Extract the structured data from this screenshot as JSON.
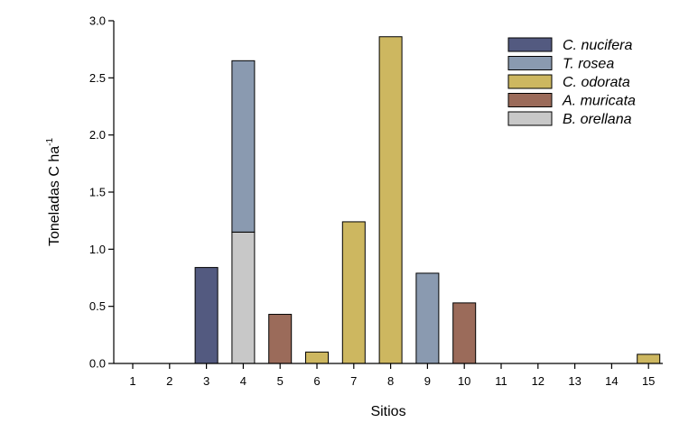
{
  "chart_data": {
    "type": "bar",
    "stacked": true,
    "title": "",
    "xlabel": "Sitios",
    "ylabel_main": "Toneladas C ha",
    "ylabel_sup": "-1",
    "ylim": [
      0,
      3.0
    ],
    "yticks": [
      "0.0",
      "0.5",
      "1.0",
      "1.5",
      "2.0",
      "2.5",
      "3.0"
    ],
    "categories": [
      "1",
      "2",
      "3",
      "4",
      "5",
      "6",
      "7",
      "8",
      "9",
      "10",
      "11",
      "12",
      "13",
      "14",
      "15"
    ],
    "series": [
      {
        "name": "C. nucifera",
        "color": "#535a80",
        "values": [
          0,
          0,
          0.84,
          0,
          0,
          0,
          0,
          0,
          0,
          0,
          0,
          0,
          0,
          0,
          0
        ]
      },
      {
        "name": "T. rosea",
        "color": "#8a9ab0",
        "values": [
          0,
          0,
          0,
          1.5,
          0,
          0,
          0,
          0,
          0.79,
          0,
          0,
          0,
          0,
          0,
          0
        ]
      },
      {
        "name": "C. odorata",
        "color": "#cdb760",
        "values": [
          0,
          0,
          0,
          0,
          0,
          0.1,
          1.24,
          2.86,
          0,
          0,
          0,
          0,
          0,
          0,
          0.08
        ]
      },
      {
        "name": "A. muricata",
        "color": "#9b6b5a",
        "values": [
          0,
          0,
          0,
          0,
          0.43,
          0,
          0,
          0,
          0,
          0.53,
          0,
          0,
          0,
          0,
          0
        ]
      },
      {
        "name": "B. orellana",
        "color": "#c8c8c8",
        "values": [
          0,
          0,
          0,
          1.15,
          0,
          0,
          0,
          0,
          0,
          0,
          0,
          0,
          0,
          0,
          0
        ]
      }
    ],
    "stack_order": [
      "B. orellana",
      "C. nucifera",
      "C. odorata",
      "A. muricata",
      "T. rosea"
    ],
    "legend_position": "top-right"
  }
}
